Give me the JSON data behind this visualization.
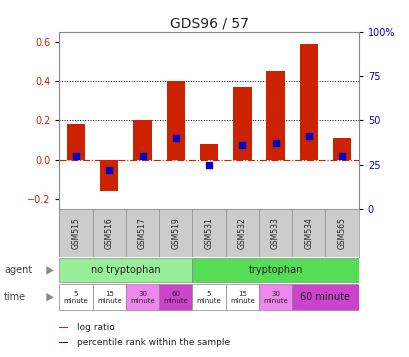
{
  "title": "GDS96 / 57",
  "samples": [
    "GSM515",
    "GSM516",
    "GSM517",
    "GSM519",
    "GSM531",
    "GSM532",
    "GSM533",
    "GSM534",
    "GSM565"
  ],
  "log_ratio": [
    0.18,
    -0.16,
    0.2,
    0.4,
    0.08,
    0.37,
    0.45,
    0.59,
    0.11
  ],
  "percentile": [
    30,
    22,
    30,
    40,
    25,
    36,
    37,
    41,
    30
  ],
  "bar_color": "#cc2200",
  "dot_color": "#0000cc",
  "ylim": [
    -0.25,
    0.65
  ],
  "y2lim": [
    0,
    100
  ],
  "yticks": [
    -0.2,
    0.0,
    0.2,
    0.4,
    0.6
  ],
  "y2ticks": [
    0,
    25,
    50,
    75,
    100
  ],
  "hlines": [
    0.2,
    0.4
  ],
  "hline_zero_color": "#cc2200",
  "agent_no_tryp": {
    "label": "no tryptophan",
    "start": 0,
    "end": 4,
    "color": "#99ee99"
  },
  "agent_tryp": {
    "label": "tryptophan",
    "start": 4,
    "end": 9,
    "color": "#55dd55"
  },
  "time_groups": [
    {
      "label": "5\nminute",
      "start": 0,
      "end": 1,
      "color": "#ffffff"
    },
    {
      "label": "15\nminute",
      "start": 1,
      "end": 2,
      "color": "#ffffff"
    },
    {
      "label": "30\nminute",
      "start": 2,
      "end": 3,
      "color": "#ee88ee"
    },
    {
      "label": "60\nminute",
      "start": 3,
      "end": 4,
      "color": "#cc44cc"
    },
    {
      "label": "5\nminute",
      "start": 4,
      "end": 5,
      "color": "#ffffff"
    },
    {
      "label": "15\nminute",
      "start": 5,
      "end": 6,
      "color": "#ffffff"
    },
    {
      "label": "30\nminute",
      "start": 6,
      "end": 7,
      "color": "#ee88ee"
    },
    {
      "label": "60 minute",
      "start": 7,
      "end": 9,
      "color": "#cc44cc"
    }
  ],
  "legend_items": [
    {
      "label": "log ratio",
      "color": "#cc2200"
    },
    {
      "label": "percentile rank within the sample",
      "color": "#0000cc"
    }
  ],
  "bg_color": "#ffffff",
  "sample_bg_color": "#cccccc",
  "arrow_color": "#666666"
}
